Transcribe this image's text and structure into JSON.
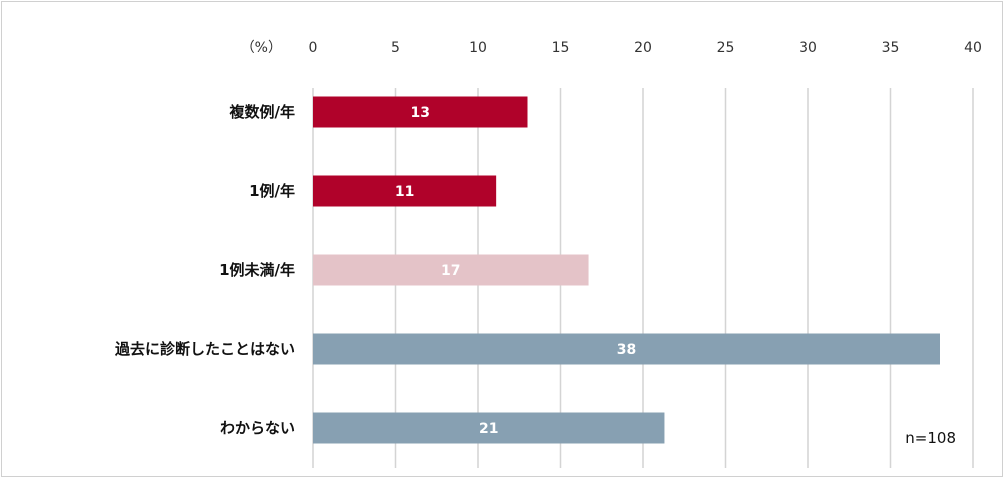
{
  "chart_data": {
    "type": "bar",
    "orientation": "horizontal",
    "unit_label": "（%）",
    "categories": [
      "複数例/年",
      "1例/年",
      "1例未満/年",
      "過去に診断したことはない",
      "わからない"
    ],
    "values": [
      13.0,
      11.1,
      16.7,
      38.0,
      21.3
    ],
    "data_labels": [
      "13",
      "11",
      "17",
      "38",
      "21"
    ],
    "colors": [
      "#b0022a",
      "#b0022a",
      "#e4c3c8",
      "#87a0b2",
      "#87a0b2"
    ],
    "xlim": [
      0,
      40
    ],
    "xticks": [
      "0",
      "5",
      "10",
      "15",
      "20",
      "25",
      "30",
      "35",
      "40"
    ],
    "grid": true,
    "annotation": "n=108"
  }
}
